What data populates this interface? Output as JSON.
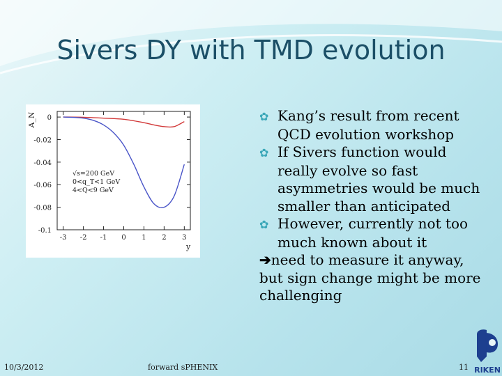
{
  "slide": {
    "title": "Sivers DY with TMD evolution",
    "bullets": [
      "Kang’s result from recent QCD evolution workshop",
      "If Sivers function would really evolve so fast asymmetries would be much smaller than anticipated",
      "However, currently not too much known about it"
    ],
    "arrow_text": "need to measure it anyway, but sign change might be more challenging",
    "footer": {
      "date": "10/3/2012",
      "center": "forward sPHENIX",
      "page": "11"
    },
    "logo_text": "RIKEN"
  },
  "chart_data": {
    "type": "line",
    "ylabel": "A_N",
    "xlabel": "y",
    "xlim": [
      -3.3,
      3.3
    ],
    "ylim": [
      -0.1,
      0.005
    ],
    "xticks": [
      "-3",
      "-2",
      "-1",
      "0",
      "1",
      "2",
      "3"
    ],
    "yticks": [
      "0",
      "-0.02",
      "-0.04",
      "-0.06",
      "-0.08",
      "-0.1"
    ],
    "annotations": [
      "√s=200 GeV",
      "0<q_T<1 GeV",
      "4<Q<9 GeV"
    ],
    "series": [
      {
        "color": "#d23a3a",
        "x": [
          -3.0,
          -2.0,
          -1.0,
          0.0,
          1.0,
          1.5,
          2.0,
          2.5,
          3.0
        ],
        "y": [
          0.0,
          -0.0002,
          -0.001,
          -0.002,
          -0.005,
          -0.007,
          -0.0085,
          -0.0085,
          -0.004
        ]
      },
      {
        "color": "#4a55c8",
        "x": [
          -3.0,
          -2.5,
          -2.0,
          -1.5,
          -1.0,
          -0.5,
          0.0,
          0.5,
          1.0,
          1.5,
          2.0,
          2.5,
          3.0
        ],
        "y": [
          0.0,
          -0.0003,
          -0.001,
          -0.003,
          -0.007,
          -0.014,
          -0.025,
          -0.042,
          -0.062,
          -0.077,
          -0.08,
          -0.07,
          -0.042
        ]
      }
    ]
  }
}
